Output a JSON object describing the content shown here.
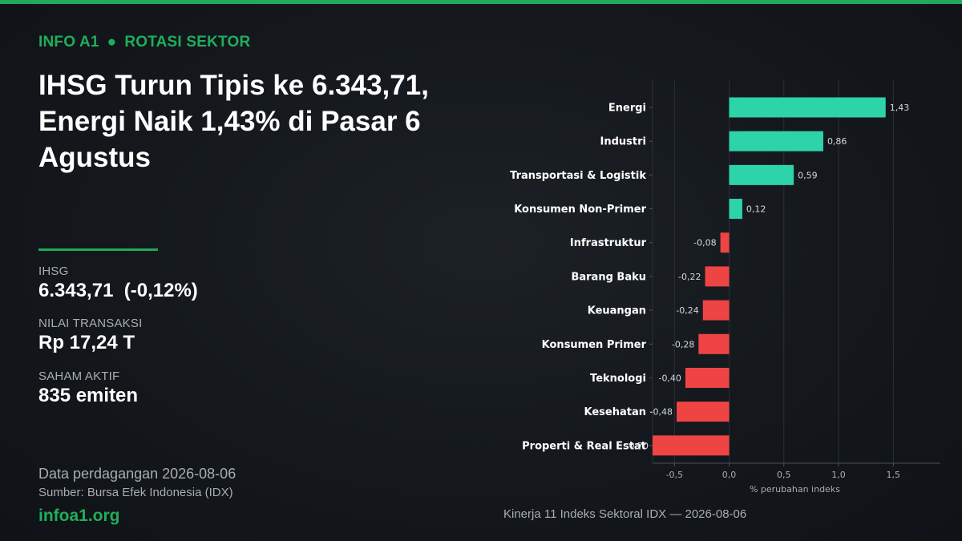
{
  "kicker": {
    "brand": "INFO A1",
    "section": "ROTASI SEKTOR"
  },
  "headline": "IHSG Turun Tipis ke 6.343,71, Energi Naik 1,43% di Pasar 6 Agustus",
  "stats": {
    "ihsg": {
      "label": "IHSG",
      "value": "6.343,71  (-0,12%)"
    },
    "transaction": {
      "label": "NILAI TRANSAKSI",
      "value": "Rp 17,24 T"
    },
    "active": {
      "label": "SAHAM AKTIF",
      "value": "835 emiten"
    }
  },
  "footer": {
    "date": "Data perdagangan 2026-08-06",
    "source": "Sumber: Bursa Efek Indonesia (IDX)",
    "site": "infoa1.org"
  },
  "colors": {
    "accent": "#22a95a",
    "positive": "#2dd4aa",
    "negative": "#ef4444"
  },
  "chart_data": {
    "type": "bar",
    "orientation": "horizontal",
    "title": "Kinerja 11 Indeks Sektoral IDX — 2026-08-06",
    "xlabel": "% perubahan indeks",
    "ylabel": "",
    "categories": [
      "Energi",
      "Industri",
      "Transportasi & Logistik",
      "Konsumen Non-Primer",
      "Infrastruktur",
      "Barang Baku",
      "Keuangan",
      "Konsumen Primer",
      "Teknologi",
      "Kesehatan",
      "Properti & Real Estat"
    ],
    "values": [
      1.43,
      0.86,
      0.59,
      0.12,
      -0.08,
      -0.22,
      -0.24,
      -0.28,
      -0.4,
      -0.48,
      -0.7
    ],
    "value_labels": [
      "1,43",
      "0,86",
      "0,59",
      "0,12",
      "-0,08",
      "-0,22",
      "-0,24",
      "-0,28",
      "-0,40",
      "-0,48",
      "-0,70"
    ],
    "xticks": [
      -0.5,
      0.0,
      0.5,
      1.0,
      1.5
    ],
    "xtick_labels": [
      "-0,5",
      "0,0",
      "0,5",
      "1,0",
      "1,5"
    ],
    "xlim": [
      -0.7,
      1.93
    ],
    "grid": true,
    "legend": "none"
  }
}
